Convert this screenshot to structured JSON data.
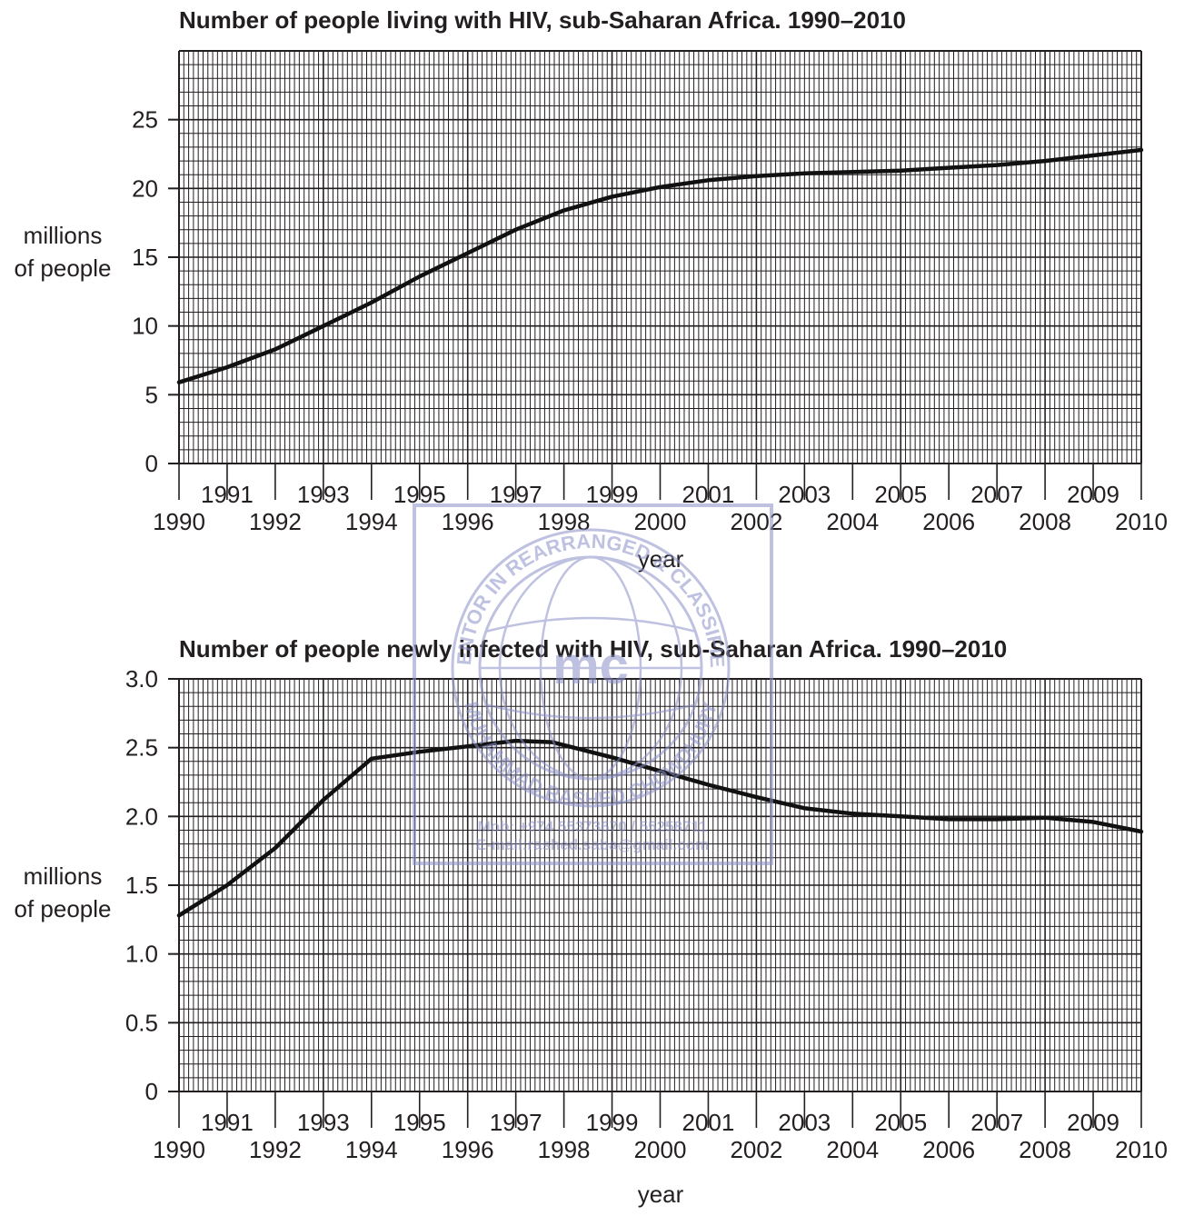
{
  "chart_data": [
    {
      "type": "line",
      "title": "Number of people living with HIV, sub-Saharan Africa. 1990–2010",
      "xlabel": "year",
      "ylabel_lines": [
        "millions",
        "of people"
      ],
      "xlim": [
        1990,
        2010
      ],
      "ylim": [
        0,
        30
      ],
      "y_ticks": [
        0,
        5,
        10,
        15,
        20,
        25
      ],
      "y_tick_labels": [
        "0",
        "5",
        "10",
        "15",
        "20",
        "25"
      ],
      "x_ticks": [
        1990,
        1991,
        1992,
        1993,
        1994,
        1995,
        1996,
        1997,
        1998,
        1999,
        2000,
        2001,
        2002,
        2003,
        2004,
        2005,
        2006,
        2007,
        2008,
        2009,
        2010
      ],
      "x_tick_labels": [
        "1990",
        "1991",
        "1992",
        "1993",
        "1994",
        "1995",
        "1996",
        "1997",
        "1998",
        "1999",
        "2000",
        "2001",
        "2002",
        "2003",
        "2004",
        "2005",
        "2006",
        "2007",
        "2008",
        "2009",
        "2010"
      ],
      "grid": true,
      "series": [
        {
          "x": [
            1990,
            1991,
            1992,
            1993,
            1994,
            1995,
            1996,
            1997,
            1998,
            1999,
            2000,
            2001,
            2002,
            2003,
            2004,
            2005,
            2006,
            2007,
            2008,
            2009,
            2010
          ],
          "values": [
            5.9,
            7.0,
            8.3,
            10.0,
            11.7,
            13.6,
            15.3,
            17.0,
            18.4,
            19.4,
            20.1,
            20.6,
            20.9,
            21.1,
            21.2,
            21.3,
            21.5,
            21.7,
            22.0,
            22.4,
            22.8
          ]
        }
      ]
    },
    {
      "type": "line",
      "title": "Number of people newly infected with HIV, sub-Saharan Africa. 1990–2010",
      "xlabel": "year",
      "ylabel_lines": [
        "millions",
        "of people"
      ],
      "xlim": [
        1990,
        2010
      ],
      "ylim": [
        0,
        3.0
      ],
      "y_ticks": [
        0,
        0.5,
        1.0,
        1.5,
        2.0,
        2.5,
        3.0
      ],
      "y_tick_labels": [
        "0",
        "0.5",
        "1.0",
        "1.5",
        "2.0",
        "2.5",
        "3.0"
      ],
      "x_ticks": [
        1990,
        1991,
        1992,
        1993,
        1994,
        1995,
        1996,
        1997,
        1998,
        1999,
        2000,
        2001,
        2002,
        2003,
        2004,
        2005,
        2006,
        2007,
        2008,
        2009,
        2010
      ],
      "x_tick_labels": [
        "1990",
        "1991",
        "1992",
        "1993",
        "1994",
        "1995",
        "1996",
        "1997",
        "1998",
        "1999",
        "2000",
        "2001",
        "2002",
        "2003",
        "2004",
        "2005",
        "2006",
        "2007",
        "2008",
        "2009",
        "2010"
      ],
      "grid": true,
      "series": [
        {
          "x": [
            1990,
            1991,
            1992,
            1993,
            1994,
            1995,
            1996,
            1997,
            1997.75,
            1999,
            2000,
            2001,
            2002,
            2003,
            2004,
            2005,
            2006,
            2007,
            2008,
            2009,
            2010
          ],
          "values": [
            1.28,
            1.5,
            1.77,
            2.12,
            2.42,
            2.47,
            2.51,
            2.55,
            2.54,
            2.43,
            2.33,
            2.23,
            2.14,
            2.06,
            2.02,
            2.0,
            1.98,
            1.98,
            1.99,
            1.96,
            1.89
          ]
        }
      ]
    }
  ],
  "watermark": {
    "ring_text_top": "MENTOR IN REARRANGED & CLASSIFIED",
    "ring_text_bottom": "MUHAMMAD RASHED CHOWDHURY",
    "logo": "mc",
    "mobile": "Mob:  +974 55373670 / 55258711",
    "email": "E-mail:rashed.saba@gmail.com",
    "color": "#8c8fc8"
  }
}
